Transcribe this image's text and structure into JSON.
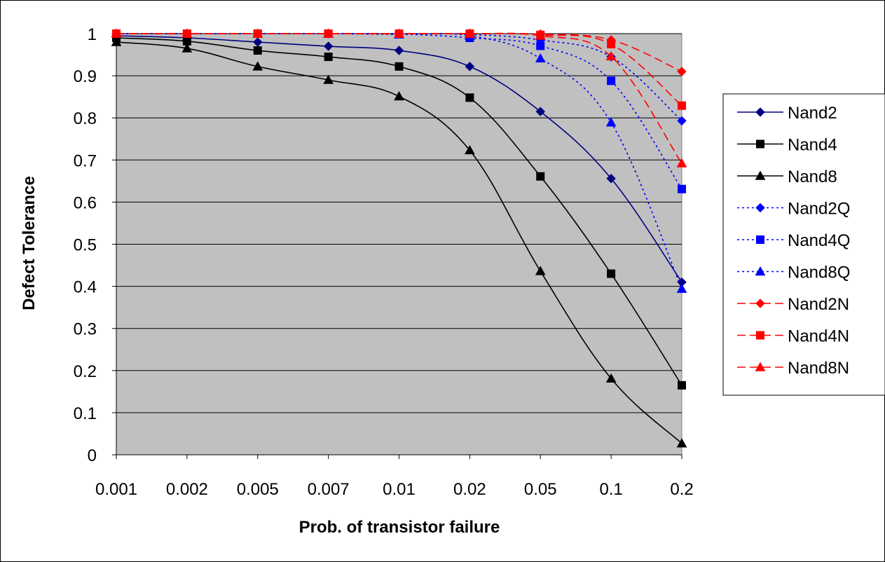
{
  "chart_data": {
    "type": "line",
    "title": "",
    "xlabel": "Prob. of transistor failure",
    "ylabel": "Defect Tolerance",
    "categories": [
      "0.001",
      "0.002",
      "0.005",
      "0.007",
      "0.01",
      "0.02",
      "0.05",
      "0.1",
      "0.2"
    ],
    "yticks": [
      "0",
      "0.1",
      "0.2",
      "0.3",
      "0.4",
      "0.5",
      "0.6",
      "0.7",
      "0.8",
      "0.9",
      "1"
    ],
    "ylim": [
      0,
      1
    ],
    "grid": true,
    "plot_background": "#c0c0c0",
    "legend_position": "right",
    "series": [
      {
        "name": "Nand2",
        "color": "#000080",
        "dash": "solid",
        "marker": "diamond",
        "values": [
          0.995,
          0.99,
          0.98,
          0.97,
          0.96,
          0.922,
          0.815,
          0.656,
          0.41
        ]
      },
      {
        "name": "Nand4",
        "color": "#000000",
        "dash": "solid",
        "marker": "square",
        "values": [
          0.99,
          0.982,
          0.96,
          0.945,
          0.922,
          0.848,
          0.661,
          0.43,
          0.165
        ]
      },
      {
        "name": "Nand8",
        "color": "#000000",
        "dash": "solid",
        "marker": "triangle",
        "values": [
          0.98,
          0.965,
          0.922,
          0.89,
          0.851,
          0.723,
          0.436,
          0.181,
          0.027
        ]
      },
      {
        "name": "Nand2Q",
        "color": "#0000ff",
        "dash": "dotted",
        "marker": "diamond",
        "values": [
          1.0,
          1.0,
          1.0,
          1.0,
          1.0,
          0.998,
          0.985,
          0.945,
          0.793
        ]
      },
      {
        "name": "Nand4Q",
        "color": "#0000ff",
        "dash": "dotted",
        "marker": "square",
        "values": [
          1.0,
          1.0,
          1.0,
          1.0,
          0.999,
          0.99,
          0.971,
          0.888,
          0.631
        ]
      },
      {
        "name": "Nand8Q",
        "color": "#0000ff",
        "dash": "dotted",
        "marker": "triangle",
        "values": [
          1.0,
          1.0,
          1.0,
          1.0,
          0.998,
          0.995,
          0.941,
          0.789,
          0.394
        ]
      },
      {
        "name": "Nand2N",
        "color": "#ff0000",
        "dash": "dashed",
        "marker": "diamond",
        "values": [
          1.0,
          1.0,
          1.0,
          1.0,
          1.0,
          1.0,
          0.999,
          0.985,
          0.91
        ]
      },
      {
        "name": "Nand4N",
        "color": "#ff0000",
        "dash": "dashed",
        "marker": "square",
        "values": [
          1.0,
          1.0,
          1.0,
          1.0,
          1.0,
          1.0,
          0.997,
          0.975,
          0.829
        ]
      },
      {
        "name": "Nand8N",
        "color": "#ff0000",
        "dash": "dashed",
        "marker": "triangle",
        "values": [
          1.0,
          1.0,
          1.0,
          1.0,
          1.0,
          1.0,
          0.995,
          0.946,
          0.692
        ]
      }
    ]
  }
}
